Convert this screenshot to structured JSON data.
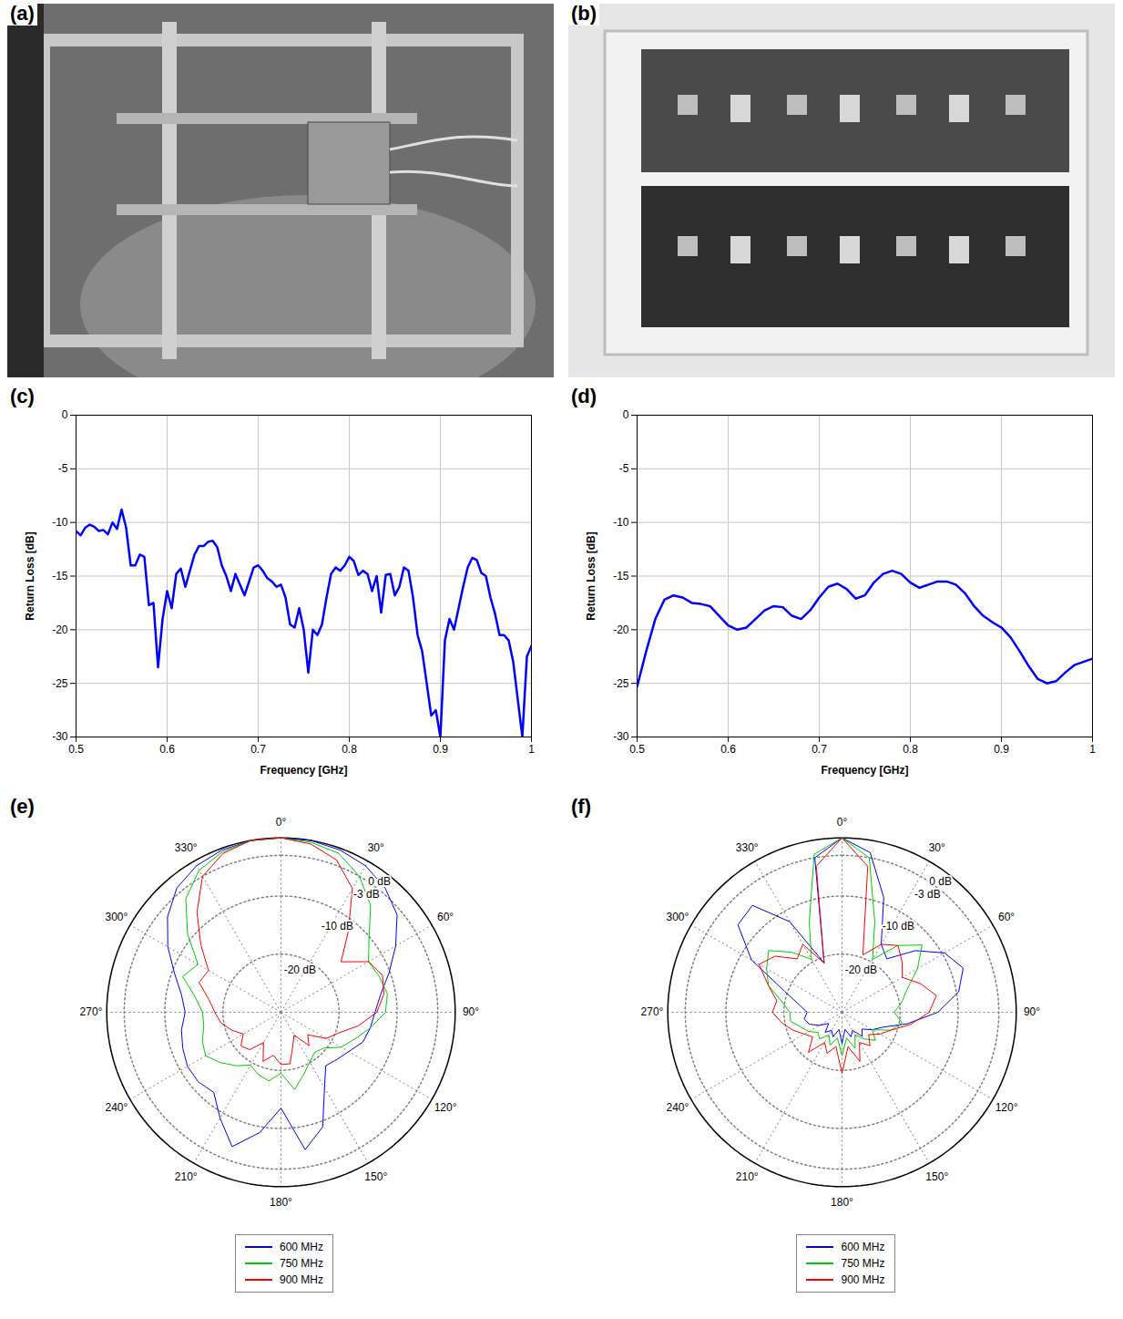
{
  "chart_data": [
    {
      "type": "image",
      "panel": "(a)"
    },
    {
      "type": "image",
      "panel": "(b)"
    },
    {
      "type": "line",
      "panel": "(c)",
      "xlabel": "Frequency [GHz]",
      "ylabel": "Return Loss [dB]",
      "xlim": [
        0.5,
        1
      ],
      "xticks": [
        0.5,
        0.6,
        0.7,
        0.8,
        0.9,
        1
      ],
      "ylim": [
        -30,
        0
      ],
      "yticks": [
        -30,
        -25,
        -20,
        -15,
        -10,
        -5,
        0
      ],
      "grid": true,
      "color": "#0000ff",
      "x": [
        0.5,
        0.505,
        0.51,
        0.515,
        0.52,
        0.525,
        0.53,
        0.535,
        0.54,
        0.545,
        0.55,
        0.555,
        0.56,
        0.565,
        0.57,
        0.575,
        0.58,
        0.585,
        0.59,
        0.595,
        0.6,
        0.605,
        0.61,
        0.615,
        0.62,
        0.625,
        0.63,
        0.635,
        0.64,
        0.645,
        0.65,
        0.655,
        0.66,
        0.665,
        0.67,
        0.675,
        0.68,
        0.685,
        0.69,
        0.695,
        0.7,
        0.705,
        0.71,
        0.715,
        0.72,
        0.725,
        0.73,
        0.735,
        0.74,
        0.745,
        0.75,
        0.755,
        0.76,
        0.765,
        0.77,
        0.775,
        0.78,
        0.785,
        0.79,
        0.795,
        0.8,
        0.805,
        0.81,
        0.815,
        0.82,
        0.825,
        0.83,
        0.835,
        0.84,
        0.845,
        0.85,
        0.855,
        0.86,
        0.865,
        0.87,
        0.875,
        0.88,
        0.885,
        0.89,
        0.895,
        0.9,
        0.905,
        0.91,
        0.915,
        0.92,
        0.925,
        0.93,
        0.935,
        0.94,
        0.945,
        0.95,
        0.955,
        0.96,
        0.965,
        0.97,
        0.975,
        0.98,
        0.985,
        0.99,
        0.995,
        1
      ],
      "values": [
        -10.8,
        -11.2,
        -10.5,
        -10.2,
        -10.4,
        -10.8,
        -10.7,
        -11.1,
        -10.0,
        -10.6,
        -8.8,
        -10.5,
        -14.0,
        -14.0,
        -13.0,
        -13.2,
        -17.7,
        -17.5,
        -23.5,
        -19.0,
        -16.4,
        -18.0,
        -14.8,
        -14.3,
        -16.0,
        -14.5,
        -13.0,
        -12.2,
        -12.2,
        -11.8,
        -11.7,
        -12.3,
        -14.0,
        -15.0,
        -16.4,
        -14.8,
        -15.8,
        -16.8,
        -15.5,
        -14.2,
        -14.0,
        -14.5,
        -15.2,
        -15.5,
        -16.0,
        -15.8,
        -17.0,
        -19.5,
        -19.8,
        -18.0,
        -20.0,
        -24.0,
        -20.0,
        -20.5,
        -19.5,
        -17.0,
        -14.8,
        -14.2,
        -14.5,
        -14.0,
        -13.2,
        -13.6,
        -14.9,
        -14.5,
        -14.8,
        -16.4,
        -15.0,
        -18.4,
        -14.9,
        -14.8,
        -16.8,
        -16.0,
        -14.2,
        -14.5,
        -17.0,
        -20.5,
        -22.0,
        -25.0,
        -28.0,
        -27.5,
        -30.0,
        -21.0,
        -19.0,
        -20.0,
        -18.0,
        -16.0,
        -14.2,
        -13.3,
        -13.5,
        -14.7,
        -15.0,
        -17.0,
        -18.5,
        -20.5,
        -20.5,
        -21.0,
        -23.0,
        -26.5,
        -30.0,
        -22.5,
        -21.5
      ]
    },
    {
      "type": "line",
      "panel": "(d)",
      "xlabel": "Frequency [GHz]",
      "ylabel": "Return Loss [dB]",
      "xlim": [
        0.5,
        1
      ],
      "xticks": [
        0.5,
        0.6,
        0.7,
        0.8,
        0.9,
        1
      ],
      "ylim": [
        -30,
        0
      ],
      "yticks": [
        -30,
        -25,
        -20,
        -15,
        -10,
        -5,
        0
      ],
      "grid": true,
      "color": "#0000ff",
      "x": [
        0.5,
        0.51,
        0.52,
        0.53,
        0.54,
        0.55,
        0.56,
        0.57,
        0.58,
        0.59,
        0.6,
        0.61,
        0.62,
        0.63,
        0.64,
        0.65,
        0.66,
        0.67,
        0.68,
        0.69,
        0.7,
        0.71,
        0.72,
        0.73,
        0.74,
        0.75,
        0.76,
        0.77,
        0.78,
        0.79,
        0.8,
        0.81,
        0.82,
        0.83,
        0.84,
        0.85,
        0.86,
        0.87,
        0.88,
        0.89,
        0.9,
        0.91,
        0.92,
        0.93,
        0.94,
        0.95,
        0.96,
        0.97,
        0.98,
        0.99,
        1
      ],
      "values": [
        -25.3,
        -22.0,
        -19.0,
        -17.2,
        -16.8,
        -17.0,
        -17.5,
        -17.6,
        -17.8,
        -18.7,
        -19.6,
        -20.0,
        -19.8,
        -19.0,
        -18.2,
        -17.8,
        -17.9,
        -18.7,
        -19.0,
        -18.2,
        -17.0,
        -16.0,
        -15.7,
        -16.2,
        -17.1,
        -16.8,
        -15.6,
        -14.8,
        -14.5,
        -14.8,
        -15.6,
        -16.1,
        -15.8,
        -15.5,
        -15.5,
        -15.8,
        -16.6,
        -17.8,
        -18.7,
        -19.3,
        -19.8,
        -20.7,
        -22.0,
        -23.4,
        -24.6,
        -25.0,
        -24.8,
        -24.0,
        -23.3,
        -23.0,
        -22.7
      ]
    },
    {
      "type": "polar",
      "panel": "(e)",
      "grid": true,
      "legend": "bottom",
      "xlim": [
        0,
        360
      ],
      "xticks": [
        {
          "value": 0,
          "label": "0°"
        },
        {
          "value": 30,
          "label": "30°"
        },
        {
          "value": 60,
          "label": "60°"
        },
        {
          "value": 90,
          "label": "90°"
        },
        {
          "value": 120,
          "label": "120°"
        },
        {
          "value": 150,
          "label": "150°"
        },
        {
          "value": 180,
          "label": "180°"
        },
        {
          "value": 210,
          "label": "210°"
        },
        {
          "value": 240,
          "label": "240°"
        },
        {
          "value": 270,
          "label": "270°"
        },
        {
          "value": 300,
          "label": "300°"
        },
        {
          "value": 330,
          "label": "330°"
        }
      ],
      "ylim": [
        -30,
        0
      ],
      "yticks": [
        {
          "value": 0,
          "label": "0 dB"
        },
        {
          "value": -3,
          "label": "-3 dB"
        },
        {
          "value": -10,
          "label": "-10 dB"
        },
        {
          "value": -20,
          "label": "-20 dB"
        }
      ],
      "x": [
        0,
        10,
        20,
        30,
        40,
        50,
        60,
        70,
        80,
        90,
        100,
        110,
        120,
        130,
        140,
        150,
        160,
        170,
        180,
        190,
        200,
        210,
        220,
        230,
        240,
        250,
        260,
        270,
        280,
        290,
        300,
        310,
        320,
        330,
        340,
        350
      ],
      "series": [
        {
          "name": "600 MHz",
          "color": "#0000ff",
          "values": [
            0,
            0,
            -0.3,
            -0.9,
            -2.1,
            -3.9,
            -7.2,
            -10.2,
            -12.6,
            -13.8,
            -14.4,
            -15,
            -16.5,
            -17.4,
            -18,
            -15,
            -9,
            -6,
            -13.5,
            -9,
            -5.4,
            -9,
            -12,
            -11.4,
            -11.4,
            -12,
            -12.6,
            -13.5,
            -12.6,
            -10.5,
            -7.5,
            -4.5,
            -2.1,
            -0.9,
            -0.3,
            0
          ]
        },
        {
          "name": "750 MHz",
          "color": "#00cc00",
          "values": [
            0,
            -0.3,
            -0.9,
            -3,
            -6,
            -10.2,
            -12.6,
            -12,
            -11.4,
            -12,
            -14.4,
            -16.5,
            -18,
            -20.4,
            -21,
            -20.1,
            -18.6,
            -16.5,
            -19.5,
            -18,
            -18.6,
            -19.5,
            -18,
            -16.5,
            -15,
            -15.6,
            -16.5,
            -16.5,
            -15,
            -12,
            -13.5,
            -9,
            -4.5,
            -1.8,
            -0.6,
            0
          ]
        },
        {
          "name": "900 MHz",
          "color": "#ff0000",
          "values": [
            0,
            -0.6,
            -2.1,
            -5.4,
            -12,
            -16.5,
            -12.6,
            -11.4,
            -12,
            -13.5,
            -16.5,
            -19.5,
            -21,
            -24,
            -22.5,
            -25.5,
            -24,
            -21,
            -21,
            -22.5,
            -21,
            -24,
            -21.6,
            -21,
            -22.5,
            -21,
            -19.5,
            -18.6,
            -17.4,
            -15,
            -15.6,
            -12,
            -7.5,
            -3,
            -0.9,
            0
          ]
        }
      ]
    },
    {
      "type": "polar",
      "panel": "(f)",
      "grid": true,
      "legend": "bottom",
      "xlim": [
        0,
        360
      ],
      "xticks": [
        {
          "value": 0,
          "label": "0°"
        },
        {
          "value": 30,
          "label": "30°"
        },
        {
          "value": 60,
          "label": "60°"
        },
        {
          "value": 90,
          "label": "90°"
        },
        {
          "value": 120,
          "label": "120°"
        },
        {
          "value": 150,
          "label": "150°"
        },
        {
          "value": 180,
          "label": "180°"
        },
        {
          "value": 210,
          "label": "210°"
        },
        {
          "value": 240,
          "label": "240°"
        },
        {
          "value": 270,
          "label": "270°"
        },
        {
          "value": 300,
          "label": "300°"
        },
        {
          "value": 330,
          "label": "330°"
        }
      ],
      "ylim": [
        -30,
        0
      ],
      "yticks": [
        {
          "value": 0,
          "label": "0 dB"
        },
        {
          "value": -3,
          "label": "-3 dB"
        },
        {
          "value": -10,
          "label": "-10 dB"
        },
        {
          "value": -20,
          "label": "-20 dB"
        }
      ],
      "x": [
        0,
        10,
        20,
        30,
        40,
        50,
        60,
        70,
        80,
        90,
        100,
        110,
        120,
        130,
        140,
        150,
        160,
        170,
        180,
        190,
        200,
        210,
        220,
        230,
        240,
        250,
        260,
        270,
        280,
        290,
        300,
        310,
        320,
        330,
        340,
        350
      ],
      "series": [
        {
          "name": "600 MHz",
          "color": "#0000ff",
          "values": [
            0,
            -2.1,
            -9,
            -16.5,
            -18,
            -13.5,
            -9.6,
            -7.8,
            -9.6,
            -13.5,
            -18.6,
            -22.5,
            -24,
            -25.5,
            -24.6,
            -26.4,
            -25.5,
            -27,
            -24.6,
            -27,
            -25.5,
            -26.4,
            -25.5,
            -27,
            -25.5,
            -24,
            -23.4,
            -24,
            -22.5,
            -19.5,
            -12,
            -6.6,
            -6,
            -12,
            -21,
            -3
          ]
        },
        {
          "name": "750 MHz",
          "color": "#00cc00",
          "values": [
            0,
            -3,
            -13.5,
            -19.5,
            -15,
            -12,
            -15,
            -18,
            -19.5,
            -21,
            -19.5,
            -21,
            -24,
            -22.5,
            -24,
            -25.5,
            -23.4,
            -25.5,
            -22.5,
            -25.5,
            -24,
            -25.5,
            -24,
            -24.6,
            -23.4,
            -22.5,
            -21,
            -21,
            -19.5,
            -16.5,
            -15,
            -13.5,
            -16.5,
            -19.5,
            -13.5,
            -2.4
          ]
        },
        {
          "name": "900 MHz",
          "color": "#ff0000",
          "values": [
            0,
            -4.5,
            -19.5,
            -16.5,
            -15,
            -16.5,
            -18,
            -15.6,
            -13.5,
            -15,
            -18,
            -21,
            -22.5,
            -24,
            -22.5,
            -24,
            -21,
            -24,
            -19.5,
            -24,
            -22.5,
            -24,
            -21,
            -23.4,
            -22.5,
            -21,
            -19.5,
            -18,
            -18.6,
            -16.5,
            -13.5,
            -15,
            -18,
            -16.5,
            -21,
            -4.5
          ]
        }
      ]
    }
  ]
}
